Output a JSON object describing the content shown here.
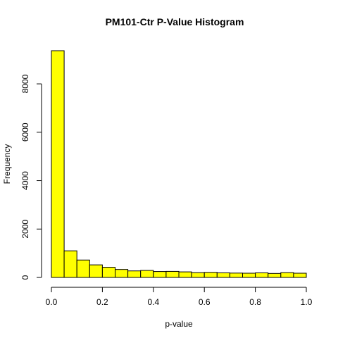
{
  "chart_data": {
    "type": "bar",
    "title": "PM101-Ctr  P-Value Histogram",
    "xlabel": "p-value",
    "ylabel": "Frequency",
    "bin_width": 0.05,
    "bins": [
      {
        "start": 0.0,
        "end": 0.05,
        "count": 9370
      },
      {
        "start": 0.05,
        "end": 0.1,
        "count": 1100
      },
      {
        "start": 0.1,
        "end": 0.15,
        "count": 720
      },
      {
        "start": 0.15,
        "end": 0.2,
        "count": 520
      },
      {
        "start": 0.2,
        "end": 0.25,
        "count": 420
      },
      {
        "start": 0.25,
        "end": 0.3,
        "count": 330
      },
      {
        "start": 0.3,
        "end": 0.35,
        "count": 270
      },
      {
        "start": 0.35,
        "end": 0.4,
        "count": 290
      },
      {
        "start": 0.4,
        "end": 0.45,
        "count": 245
      },
      {
        "start": 0.45,
        "end": 0.5,
        "count": 250
      },
      {
        "start": 0.5,
        "end": 0.55,
        "count": 230
      },
      {
        "start": 0.55,
        "end": 0.6,
        "count": 200
      },
      {
        "start": 0.6,
        "end": 0.65,
        "count": 210
      },
      {
        "start": 0.65,
        "end": 0.7,
        "count": 190
      },
      {
        "start": 0.7,
        "end": 0.75,
        "count": 180
      },
      {
        "start": 0.75,
        "end": 0.8,
        "count": 175
      },
      {
        "start": 0.8,
        "end": 0.85,
        "count": 190
      },
      {
        "start": 0.85,
        "end": 0.9,
        "count": 165
      },
      {
        "start": 0.9,
        "end": 0.95,
        "count": 200
      },
      {
        "start": 0.95,
        "end": 1.0,
        "count": 175
      }
    ],
    "xlim": [
      0,
      1
    ],
    "ylim": [
      0,
      9370
    ],
    "x_ticks": [
      0.0,
      0.2,
      0.4,
      0.6,
      0.8,
      1.0
    ],
    "x_tick_labels": [
      "0.0",
      "0.2",
      "0.4",
      "0.6",
      "0.8",
      "1.0"
    ],
    "y_ticks": [
      0,
      2000,
      4000,
      6000,
      8000
    ],
    "y_tick_labels": [
      "0",
      "2000",
      "4000",
      "6000",
      "8000"
    ],
    "bar_color": "#ffff00",
    "bar_border_color": "#000000",
    "grid": false,
    "legend": "none"
  }
}
